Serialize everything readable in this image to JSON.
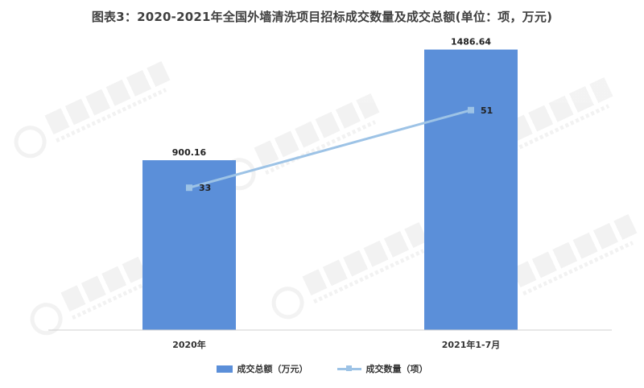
{
  "chart_data": {
    "type": "bar",
    "title": "图表3：2020-2021年全国外墙清洗项目招标成交数量及成交总额(单位：项，万元)",
    "categories": [
      "2020年",
      "2021年1-7月"
    ],
    "series": [
      {
        "name": "成交总额（万元）",
        "type": "bar",
        "values": [
          900.16,
          1486.64
        ],
        "labels": [
          "900.16",
          "1486.64"
        ],
        "color": "#5b8fd9"
      },
      {
        "name": "成交数量（项）",
        "type": "line",
        "values": [
          33,
          51
        ],
        "labels": [
          "33",
          "51"
        ],
        "color": "#9dc3e6"
      }
    ],
    "ylim": [
      0,
      1600
    ],
    "y2lim": [
      0,
      70
    ],
    "grid": false,
    "legend_position": "bottom"
  }
}
